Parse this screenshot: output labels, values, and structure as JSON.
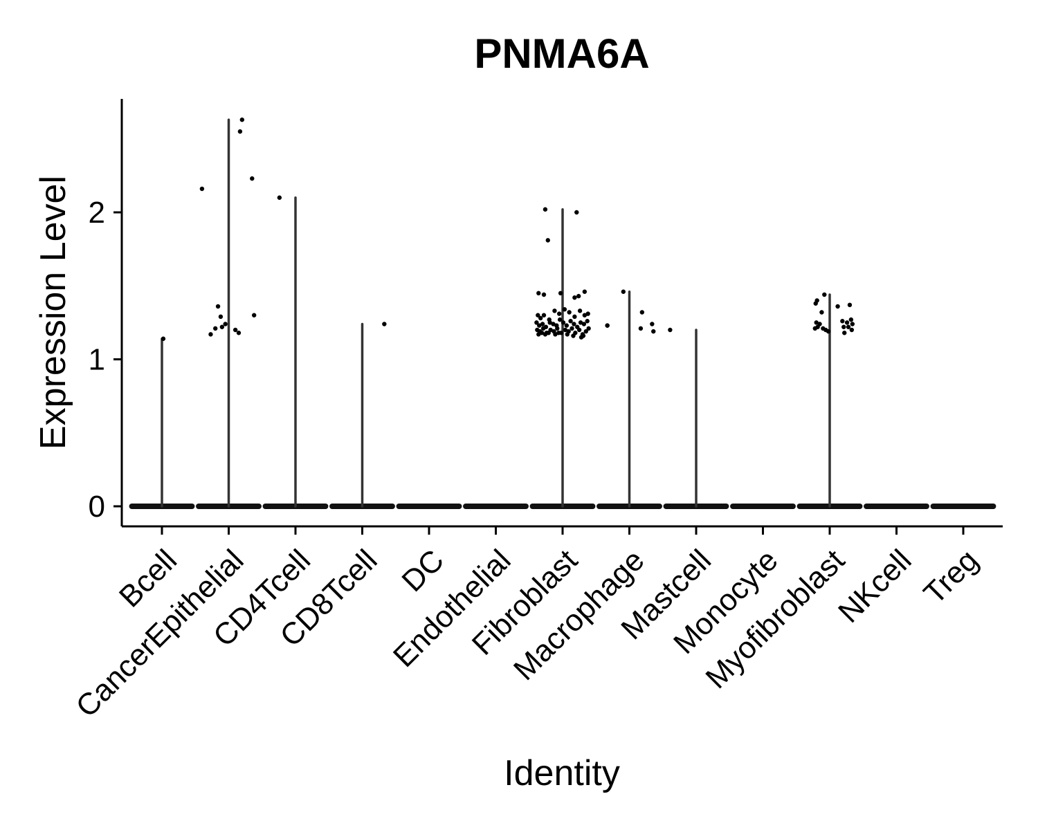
{
  "chart_data": {
    "type": "violin",
    "title": "PNMA6A",
    "xlabel": "Identity",
    "ylabel": "Expression Level",
    "ylim": [
      -0.13,
      2.76
    ],
    "yticks": [
      0,
      1,
      2
    ],
    "grid": false,
    "legend": "none",
    "categories": [
      "Bcell",
      "CancerEpithelial",
      "CD4Tcell",
      "CD8Tcell",
      "DC",
      "Endothelial",
      "Fibroblast",
      "Macrophage",
      "Mastcell",
      "Monocyte",
      "Myofibroblast",
      "NKcell",
      "Treg"
    ],
    "series": [
      {
        "category": "Bcell",
        "max": 1.14,
        "points": [
          [
            0.02,
            1.14
          ]
        ]
      },
      {
        "category": "CancerEpithelial",
        "max": 2.63,
        "points": [
          [
            -0.4,
            2.16
          ],
          [
            -0.27,
            1.17
          ],
          [
            -0.2,
            1.21
          ],
          [
            -0.16,
            1.36
          ],
          [
            -0.12,
            1.29
          ],
          [
            -0.1,
            1.22
          ],
          [
            -0.05,
            1.24
          ],
          [
            0.1,
            1.2
          ],
          [
            0.15,
            1.18
          ],
          [
            0.17,
            2.55
          ],
          [
            0.2,
            2.63
          ],
          [
            0.35,
            2.23
          ],
          [
            0.38,
            1.3
          ]
        ]
      },
      {
        "category": "CD4Tcell",
        "max": 2.1,
        "points": [
          [
            -0.24,
            2.1
          ]
        ]
      },
      {
        "category": "CD8Tcell",
        "max": 1.24,
        "points": [
          [
            0.33,
            1.24
          ]
        ]
      },
      {
        "category": "DC",
        "max": 0,
        "points": []
      },
      {
        "category": "Endothelial",
        "max": 0,
        "points": []
      },
      {
        "category": "Fibroblast",
        "max": 2.02,
        "points": [
          [
            -0.26,
            2.02
          ],
          [
            -0.22,
            1.81
          ],
          [
            0.21,
            2.0
          ],
          [
            -0.36,
            1.45
          ],
          [
            -0.28,
            1.44
          ],
          [
            -0.03,
            1.45
          ],
          [
            0.18,
            1.42
          ],
          [
            0.24,
            1.43
          ],
          [
            0.33,
            1.46
          ],
          [
            -0.37,
            1.3
          ],
          [
            -0.33,
            1.28
          ],
          [
            -0.28,
            1.3
          ],
          [
            -0.2,
            1.27
          ],
          [
            -0.12,
            1.33
          ],
          [
            -0.05,
            1.31
          ],
          [
            0.03,
            1.34
          ],
          [
            0.1,
            1.32
          ],
          [
            0.18,
            1.29
          ],
          [
            0.26,
            1.33
          ],
          [
            0.33,
            1.3
          ],
          [
            0.38,
            1.31
          ],
          [
            -0.39,
            1.25
          ],
          [
            -0.35,
            1.23
          ],
          [
            -0.3,
            1.24
          ],
          [
            -0.25,
            1.22
          ],
          [
            -0.19,
            1.25
          ],
          [
            -0.14,
            1.24
          ],
          [
            -0.09,
            1.23
          ],
          [
            -0.04,
            1.27
          ],
          [
            0.01,
            1.25
          ],
          [
            0.06,
            1.23
          ],
          [
            0.12,
            1.26
          ],
          [
            0.17,
            1.24
          ],
          [
            0.22,
            1.22
          ],
          [
            0.27,
            1.25
          ],
          [
            0.32,
            1.24
          ],
          [
            0.37,
            1.26
          ],
          [
            -0.38,
            1.2
          ],
          [
            -0.34,
            1.19
          ],
          [
            -0.29,
            1.21
          ],
          [
            -0.24,
            1.18
          ],
          [
            -0.18,
            1.2
          ],
          [
            -0.13,
            1.19
          ],
          [
            -0.08,
            1.21
          ],
          [
            -0.02,
            1.18
          ],
          [
            0.04,
            1.2
          ],
          [
            0.09,
            1.19
          ],
          [
            0.14,
            1.21
          ],
          [
            0.19,
            1.18
          ],
          [
            0.25,
            1.2
          ],
          [
            0.3,
            1.17
          ],
          [
            0.35,
            1.19
          ],
          [
            0.39,
            1.21
          ],
          [
            -0.36,
            1.17
          ],
          [
            -0.31,
            1.18
          ],
          [
            -0.26,
            1.17
          ],
          [
            -0.21,
            1.18
          ],
          [
            -0.11,
            1.17
          ],
          [
            -0.06,
            1.18
          ],
          [
            0.07,
            1.17
          ],
          [
            0.16,
            1.16
          ],
          [
            0.28,
            1.15
          ],
          [
            0.31,
            1.16
          ]
        ]
      },
      {
        "category": "Macrophage",
        "max": 1.46,
        "points": [
          [
            -0.33,
            1.23
          ],
          [
            -0.09,
            1.46
          ],
          [
            0.17,
            1.21
          ],
          [
            0.19,
            1.32
          ],
          [
            0.34,
            1.24
          ],
          [
            -0.33,
            1.23
          ]
        ]
      },
      {
        "category": "Mastcell",
        "max": 1.2,
        "points": [
          [
            -0.64,
            1.19
          ],
          [
            -0.39,
            1.2
          ]
        ]
      },
      {
        "category": "Monocyte",
        "max": 0,
        "points": []
      },
      {
        "category": "Myofibroblast",
        "max": 1.44,
        "points": [
          [
            -0.21,
            1.38
          ],
          [
            -0.19,
            1.4
          ],
          [
            -0.2,
            1.25
          ],
          [
            -0.18,
            1.22
          ],
          [
            -0.22,
            1.21
          ],
          [
            -0.15,
            1.24
          ],
          [
            -0.12,
            1.32
          ],
          [
            -0.1,
            1.21
          ],
          [
            -0.06,
            1.2
          ],
          [
            -0.02,
            1.19
          ],
          [
            -0.08,
            1.44
          ],
          [
            0.12,
            1.36
          ],
          [
            0.19,
            1.26
          ],
          [
            0.21,
            1.22
          ],
          [
            0.22,
            1.18
          ],
          [
            0.26,
            1.25
          ],
          [
            0.28,
            1.22
          ],
          [
            0.3,
            1.37
          ],
          [
            0.32,
            1.27
          ],
          [
            0.33,
            1.2
          ],
          [
            0.34,
            1.24
          ]
        ]
      },
      {
        "category": "NKcell",
        "max": 0,
        "points": []
      },
      {
        "category": "Treg",
        "max": 0,
        "points": []
      }
    ]
  }
}
